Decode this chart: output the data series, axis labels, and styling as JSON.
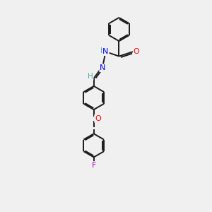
{
  "background_color": "#f0f0f0",
  "bond_color": "#1a1a1a",
  "atom_colors": {
    "O": "#ff0000",
    "N": "#0000ff",
    "F": "#cc00cc",
    "H": "#4aacac",
    "C": "#1a1a1a"
  },
  "figsize": [
    3.0,
    3.0
  ],
  "dpi": 100
}
